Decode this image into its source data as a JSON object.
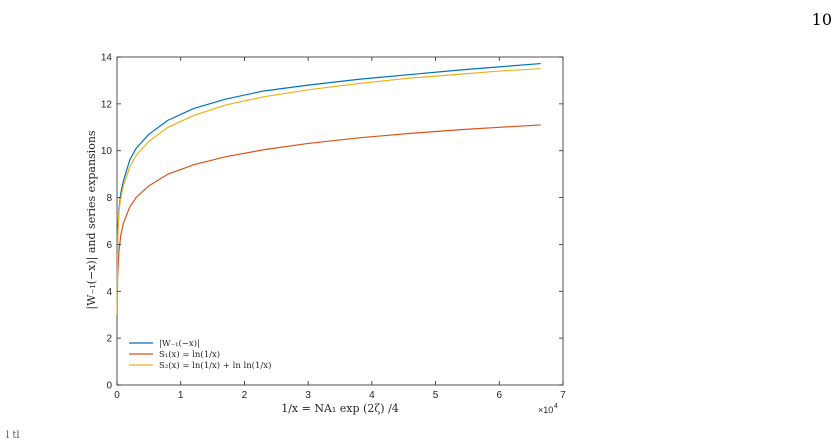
{
  "page_number": "10",
  "bottom_note": "l                   tl",
  "chart_data": {
    "type": "line",
    "xlabel": "1/x = NA₁ exp (2ζ) /4",
    "ylabel": "|W₋₁(−x)| and series expansions",
    "xlim": [
      0,
      70000
    ],
    "ylim": [
      0,
      14
    ],
    "x_ticks": [
      0,
      1,
      2,
      3,
      4,
      5,
      6,
      7
    ],
    "y_ticks": [
      0,
      2,
      4,
      6,
      8,
      10,
      12,
      14
    ],
    "x_multiplier_base": "×10",
    "x_multiplier_exp": "4",
    "legend_position": "bottom-left",
    "grid": false,
    "series": [
      {
        "name": "|W₋₁(−x)|",
        "color": "#0072BD",
        "x": [
          20,
          100,
          300,
          600,
          1000,
          2000,
          3000,
          5000,
          8000,
          12000,
          17000,
          23000,
          30000,
          38000,
          46000,
          54000,
          60000,
          66500
        ],
        "y": [
          3.0,
          6.4,
          7.5,
          8.2,
          8.7,
          9.6,
          10.1,
          10.7,
          11.3,
          11.8,
          12.2,
          12.55,
          12.8,
          13.05,
          13.25,
          13.45,
          13.58,
          13.72
        ]
      },
      {
        "name": "S₁(x) = ln(1/x)",
        "color": "#D95319",
        "x": [
          20,
          100,
          300,
          600,
          1000,
          2000,
          3000,
          5000,
          8000,
          12000,
          17000,
          23000,
          30000,
          38000,
          46000,
          54000,
          60000,
          66500
        ],
        "y": [
          3.0,
          4.6,
          5.7,
          6.4,
          6.9,
          7.6,
          8.0,
          8.5,
          9.0,
          9.4,
          9.74,
          10.04,
          10.31,
          10.55,
          10.74,
          10.9,
          11.0,
          11.1
        ]
      },
      {
        "name": "S₂(x) = ln(1/x) + ln ln(1/x)",
        "color": "#EDB120",
        "x": [
          20,
          100,
          300,
          600,
          1000,
          2000,
          3000,
          5000,
          8000,
          12000,
          17000,
          23000,
          30000,
          38000,
          46000,
          54000,
          60000,
          66500
        ],
        "y": [
          3.0,
          6.1,
          7.4,
          8.0,
          8.5,
          9.3,
          9.8,
          10.4,
          11.0,
          11.5,
          11.95,
          12.3,
          12.6,
          12.87,
          13.1,
          13.27,
          13.4,
          13.5
        ]
      }
    ]
  }
}
